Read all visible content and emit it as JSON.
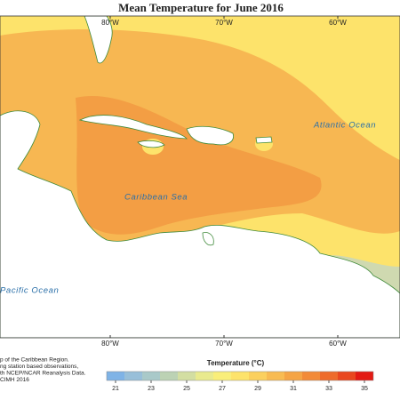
{
  "title": "Mean Temperature for June 2016",
  "map": {
    "lon_labels_top": [
      "80°W",
      "70°W",
      "60°W"
    ],
    "lon_labels_bottom": [
      "80°W",
      "70°W",
      "60°W"
    ],
    "labels": {
      "atlantic": "Atlantic Ocean",
      "caribbean": "Caribbean Sea",
      "pacific": "Pacific Ocean"
    },
    "notes": [
      "p of the Caribbean Region.",
      "ng station based observations,",
      "th NCEP/NCAR Reanalysis Data.",
      "CIMH 2016"
    ]
  },
  "legend": {
    "title": "Temperature (°C)",
    "range": [
      20.5,
      35.5
    ],
    "ticks": [
      21,
      23,
      25,
      27,
      29,
      31,
      33,
      35
    ],
    "colors": [
      "#7fb3e6",
      "#98bfd9",
      "#a9c9c9",
      "#bcd2b4",
      "#d3dea2",
      "#e9ea8e",
      "#f9ee7a",
      "#fde36b",
      "#fbd05e",
      "#f8bb52",
      "#f5a445",
      "#f28a38",
      "#ee6b2b",
      "#e9471f",
      "#e31a14"
    ]
  }
}
